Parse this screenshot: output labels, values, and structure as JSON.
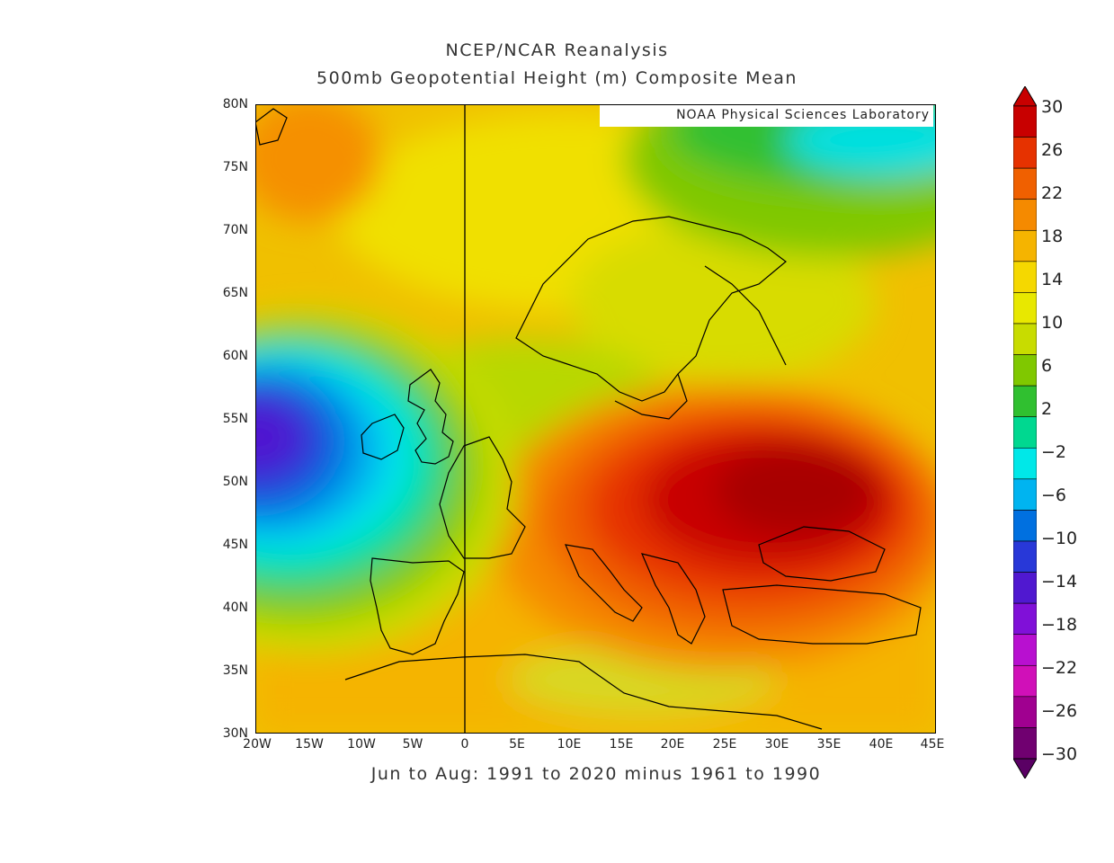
{
  "title_line1": "NCEP/NCAR Reanalysis",
  "title_line2": "500mb Geopotential Height (m) Composite Mean",
  "credit": "NOAA Physical Sciences Laboratory",
  "footer": "Jun to Aug: 1991 to 2020 minus 1961 to 1990",
  "lat_labels": [
    "80N",
    "75N",
    "70N",
    "65N",
    "60N",
    "55N",
    "50N",
    "45N",
    "40N",
    "35N",
    "30N"
  ],
  "lon_labels": [
    "20W",
    "15W",
    "10W",
    "5W",
    "0",
    "5E",
    "10E",
    "15E",
    "20E",
    "25E",
    "30E",
    "35E",
    "40E",
    "45E"
  ],
  "colorbar": {
    "labels": [
      "30",
      "26",
      "22",
      "18",
      "14",
      "10",
      "6",
      "2",
      "−2",
      "−6",
      "−10",
      "−14",
      "−18",
      "−22",
      "−26",
      "−30"
    ],
    "colors": [
      "#c80000",
      "#e63200",
      "#f06000",
      "#f58a00",
      "#f5b400",
      "#f5d800",
      "#e8e800",
      "#c8dc00",
      "#80c800",
      "#30c030",
      "#00d890",
      "#00e8e8",
      "#00b4f0",
      "#0070e0",
      "#2838d8",
      "#5018d0",
      "#8010d8",
      "#b810d0",
      "#d010b8",
      "#a00090",
      "#700070"
    ]
  }
}
